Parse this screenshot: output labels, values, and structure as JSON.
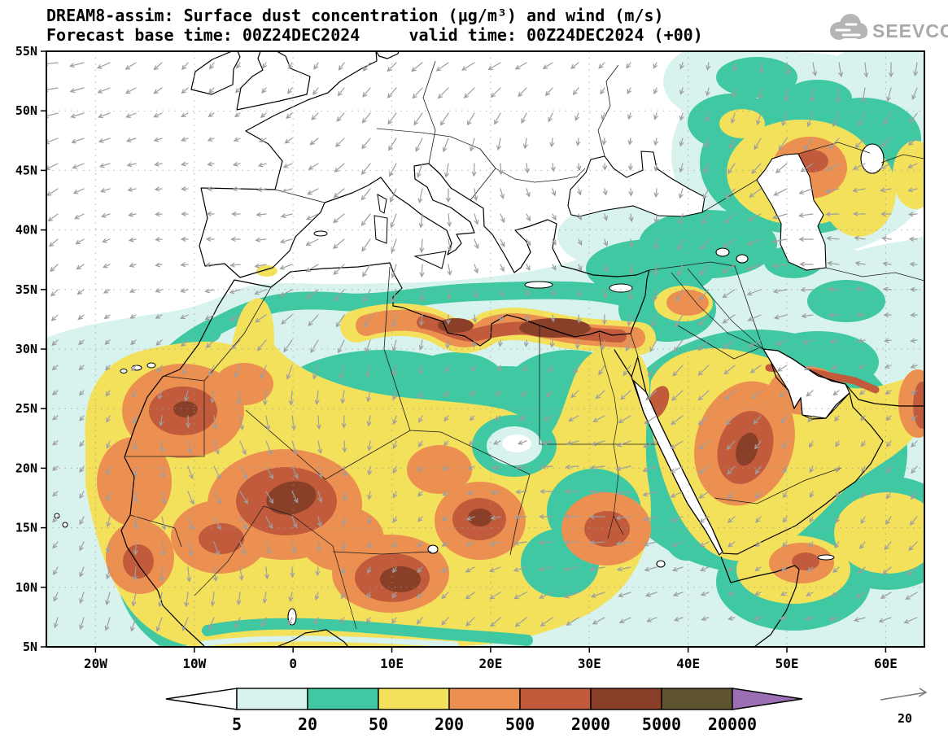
{
  "header": {
    "title_line1": "DREAM8-assim: Surface dust concentration (μg/m³) and wind (m/s)",
    "title_line2": "Forecast base time: 00Z24DEC2024     valid time: 00Z24DEC2024 (+00)",
    "logo_text": "SEEVCCC"
  },
  "chart_data": {
    "type": "heatmap",
    "model": "DREAM8-assim",
    "variable": "Surface dust concentration",
    "units": "μg/m³",
    "wind_variable": "wind",
    "wind_units": "m/s",
    "forecast_base_time": "00Z24DEC2024",
    "valid_time": "00Z24DEC2024",
    "lead": "+00",
    "x_axis": {
      "ticks": [
        "20W",
        "10W",
        "0",
        "10E",
        "20E",
        "30E",
        "40E",
        "50E",
        "60E"
      ],
      "lon_range_est": [
        -25,
        64
      ]
    },
    "y_axis": {
      "ticks": [
        "5N",
        "10N",
        "15N",
        "20N",
        "25N",
        "30N",
        "35N",
        "40N",
        "45N",
        "50N",
        "55N"
      ],
      "lat_range": [
        5,
        55
      ]
    },
    "contour_levels": [
      5,
      20,
      50,
      200,
      500,
      2000,
      5000,
      20000
    ],
    "palette": {
      "below5": "#ffffff",
      "c5": "#d8f3ee",
      "c20": "#3fc8a1",
      "c50": "#f3e15c",
      "c200": "#ec9052",
      "c500": "#c15b3c",
      "c2000": "#8a4028",
      "c5000": "#5e5430",
      "c20000": "#9b6fb4"
    },
    "wind_reference": {
      "label": "20",
      "units": "m/s"
    },
    "legend_position": "bottom"
  },
  "legend": {
    "labels": [
      "5",
      "20",
      "50",
      "200",
      "500",
      "2000",
      "5000",
      "20000"
    ],
    "cell_keys": [
      "below5",
      "c5",
      "c20",
      "c50",
      "c200",
      "c500",
      "c2000",
      "c5000",
      "c20000"
    ],
    "wind_ref_label": "20"
  }
}
